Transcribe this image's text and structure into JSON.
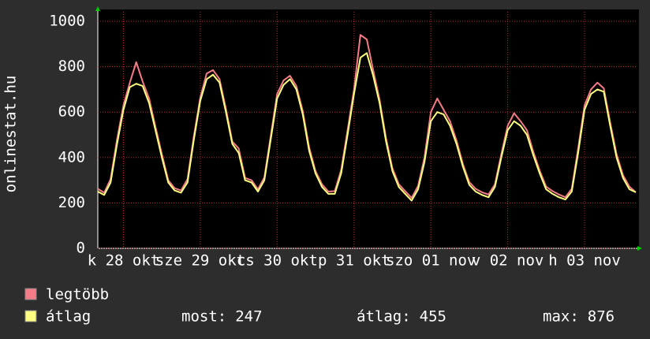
{
  "chart_data": {
    "type": "line",
    "y_label": "onlinestat.hu",
    "xlim": [
      0,
      84
    ],
    "xticks": [
      {
        "value": 4,
        "label": "k 28 okt"
      },
      {
        "value": 16,
        "label": "sze 29 okt"
      },
      {
        "value": 28,
        "label": "cs 30 okt"
      },
      {
        "value": 40,
        "label": "p 31 okt"
      },
      {
        "value": 52,
        "label": "szo 01 nov"
      },
      {
        "value": 64,
        "label": "v 02 nov"
      },
      {
        "value": 76,
        "label": "h 03 nov"
      }
    ],
    "ylim": [
      0,
      1000
    ],
    "yticks": [
      0,
      200,
      400,
      600,
      800,
      1000
    ],
    "grid": true,
    "series": [
      {
        "name": "legtöbb",
        "color": "#f47c86",
        "values": [
          262,
          245,
          305,
          480,
          630,
          730,
          820,
          735,
          660,
          535,
          415,
          300,
          265,
          255,
          305,
          495,
          665,
          770,
          785,
          745,
          615,
          470,
          440,
          310,
          300,
          260,
          312,
          495,
          680,
          740,
          760,
          715,
          605,
          445,
          340,
          282,
          250,
          252,
          345,
          520,
          700,
          940,
          920,
          785,
          655,
          485,
          352,
          282,
          252,
          222,
          275,
          400,
          600,
          660,
          610,
          560,
          475,
          372,
          292,
          262,
          247,
          237,
          282,
          415,
          540,
          595,
          560,
          520,
          425,
          342,
          272,
          252,
          237,
          225,
          262,
          440,
          630,
          700,
          730,
          705,
          555,
          415,
          322,
          272,
          247
        ]
      },
      {
        "name": "átlag",
        "color": "#ffff80",
        "values": [
          250,
          235,
          290,
          460,
          610,
          710,
          725,
          715,
          640,
          520,
          400,
          290,
          255,
          245,
          290,
          480,
          650,
          745,
          765,
          730,
          600,
          460,
          420,
          300,
          290,
          250,
          300,
          480,
          660,
          720,
          745,
          700,
          590,
          430,
          330,
          270,
          240,
          240,
          330,
          500,
          680,
          840,
          860,
          760,
          640,
          470,
          340,
          270,
          240,
          210,
          260,
          380,
          560,
          600,
          590,
          540,
          460,
          360,
          280,
          250,
          235,
          225,
          270,
          400,
          520,
          560,
          540,
          500,
          410,
          330,
          260,
          240,
          225,
          215,
          250,
          420,
          610,
          680,
          700,
          690,
          540,
          400,
          310,
          260,
          247
        ]
      }
    ],
    "stats": [
      {
        "label": "most:",
        "value": 247
      },
      {
        "label": "átlag:",
        "value": 455
      },
      {
        "label": "max:",
        "value": 876
      }
    ]
  }
}
